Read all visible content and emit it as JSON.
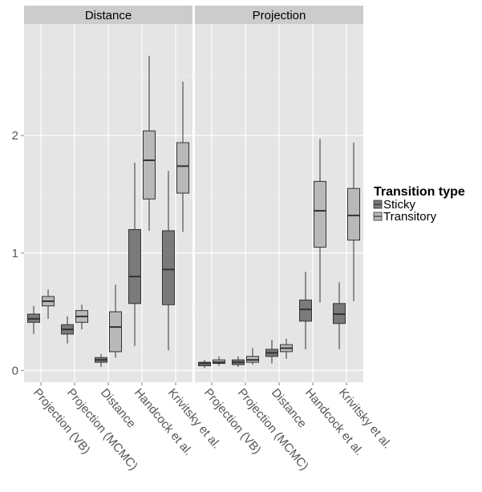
{
  "chart_data": {
    "type": "boxplot",
    "facets": [
      "Distance",
      "Projection"
    ],
    "categories": [
      "Projection (VB)",
      "Projection (MCMC)",
      "Distance",
      "Handcock et al.",
      "Krivitsky et al."
    ],
    "legend": {
      "title": "Transition type",
      "entries": [
        {
          "name": "Sticky",
          "color": "#7a7a7a"
        },
        {
          "name": "Transitory",
          "color": "#b9b9b9"
        }
      ],
      "placement": "right"
    },
    "ylim": [
      -0.1,
      2.95
    ],
    "yticks": [
      0,
      1,
      2
    ],
    "grid": true,
    "panel_background": "#e5e5e5",
    "facet_data": [
      {
        "facet": "Distance",
        "boxes": [
          {
            "category": "Projection (VB)",
            "group": "Sticky",
            "min": 0.31,
            "q1": 0.41,
            "median": 0.44,
            "q3": 0.48,
            "max": 0.55
          },
          {
            "category": "Projection (VB)",
            "group": "Transitory",
            "min": 0.44,
            "q1": 0.55,
            "median": 0.59,
            "q3": 0.63,
            "max": 0.69
          },
          {
            "category": "Projection (MCMC)",
            "group": "Sticky",
            "min": 0.23,
            "q1": 0.31,
            "median": 0.35,
            "q3": 0.39,
            "max": 0.46
          },
          {
            "category": "Projection (MCMC)",
            "group": "Transitory",
            "min": 0.35,
            "q1": 0.41,
            "median": 0.46,
            "q3": 0.51,
            "max": 0.56
          },
          {
            "category": "Distance",
            "group": "Sticky",
            "min": 0.03,
            "q1": 0.07,
            "median": 0.09,
            "q3": 0.11,
            "max": 0.14
          },
          {
            "category": "Distance",
            "group": "Transitory",
            "min": 0.11,
            "q1": 0.16,
            "median": 0.37,
            "q3": 0.5,
            "max": 0.73
          },
          {
            "category": "Handcock et al.",
            "group": "Sticky",
            "min": 0.21,
            "q1": 0.57,
            "median": 0.8,
            "q3": 1.2,
            "max": 1.77
          },
          {
            "category": "Handcock et al.",
            "group": "Transitory",
            "min": 1.19,
            "q1": 1.46,
            "median": 1.79,
            "q3": 2.04,
            "max": 2.68
          },
          {
            "category": "Krivitsky et al.",
            "group": "Sticky",
            "min": 0.17,
            "q1": 0.56,
            "median": 0.86,
            "q3": 1.19,
            "max": 1.7
          },
          {
            "category": "Krivitsky et al.",
            "group": "Transitory",
            "min": 1.18,
            "q1": 1.51,
            "median": 1.74,
            "q3": 1.94,
            "max": 2.46
          }
        ]
      },
      {
        "facet": "Projection",
        "boxes": [
          {
            "category": "Projection (VB)",
            "group": "Sticky",
            "min": 0.02,
            "q1": 0.04,
            "median": 0.06,
            "q3": 0.07,
            "max": 0.09
          },
          {
            "category": "Projection (VB)",
            "group": "Transitory",
            "min": 0.04,
            "q1": 0.06,
            "median": 0.07,
            "q3": 0.09,
            "max": 0.12
          },
          {
            "category": "Projection (MCMC)",
            "group": "Sticky",
            "min": 0.03,
            "q1": 0.05,
            "median": 0.07,
            "q3": 0.09,
            "max": 0.12
          },
          {
            "category": "Projection (MCMC)",
            "group": "Transitory",
            "min": 0.05,
            "q1": 0.07,
            "median": 0.09,
            "q3": 0.12,
            "max": 0.19
          },
          {
            "category": "Distance",
            "group": "Sticky",
            "min": 0.06,
            "q1": 0.12,
            "median": 0.15,
            "q3": 0.18,
            "max": 0.26
          },
          {
            "category": "Distance",
            "group": "Transitory",
            "min": 0.1,
            "q1": 0.16,
            "median": 0.19,
            "q3": 0.22,
            "max": 0.27
          },
          {
            "category": "Handcock et al.",
            "group": "Sticky",
            "min": 0.18,
            "q1": 0.42,
            "median": 0.52,
            "q3": 0.6,
            "max": 0.84
          },
          {
            "category": "Handcock et al.",
            "group": "Transitory",
            "min": 0.58,
            "q1": 1.05,
            "median": 1.36,
            "q3": 1.61,
            "max": 1.97
          },
          {
            "category": "Krivitsky et al.",
            "group": "Sticky",
            "min": 0.18,
            "q1": 0.4,
            "median": 0.48,
            "q3": 0.57,
            "max": 0.75
          },
          {
            "category": "Krivitsky et al.",
            "group": "Transitory",
            "min": 0.59,
            "q1": 1.11,
            "median": 1.32,
            "q3": 1.55,
            "max": 1.94
          }
        ]
      }
    ]
  }
}
